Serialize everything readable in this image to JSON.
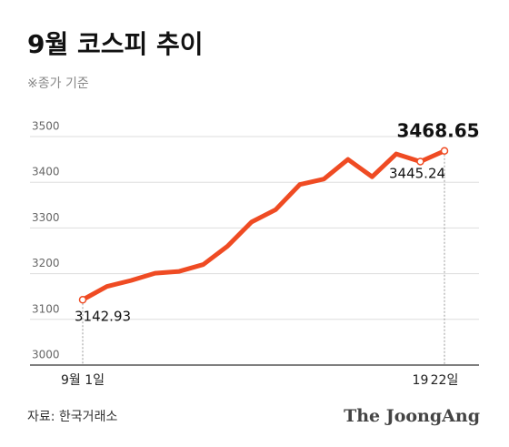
{
  "chart_data": {
    "type": "line",
    "title": "9월 코스피 추이",
    "subtitle": "※종가 기준",
    "categories": [
      "9월 1일",
      null,
      null,
      null,
      null,
      null,
      null,
      null,
      null,
      null,
      null,
      null,
      null,
      null,
      "19",
      "22일"
    ],
    "values": [
      3142.93,
      3172,
      3185,
      3201,
      3205,
      3220,
      3260,
      3313,
      3340,
      3395,
      3407,
      3450,
      3412,
      3462,
      3445.24,
      3468.65
    ],
    "color": "#ef4b23",
    "ylim": [
      3000,
      3500
    ],
    "yticks": [
      3000,
      3100,
      3200,
      3300,
      3400,
      3500
    ],
    "grid": true,
    "source": "자료: 한국거래소",
    "brand": "The JoongAng"
  }
}
